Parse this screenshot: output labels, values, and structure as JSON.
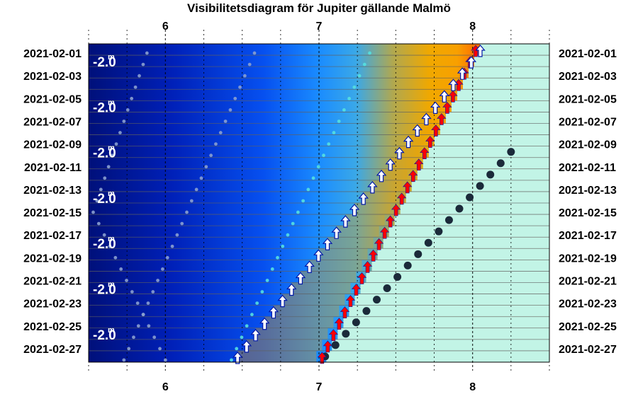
{
  "title": "Visibilitetsdiagram för Jupiter gällande Malmö",
  "chart_data": {
    "type": "scatter",
    "title": "Visibilitetsdiagram för Jupiter gällande Malmö",
    "x_ticks": [
      "6",
      "7",
      "8"
    ],
    "x_tick_values": [
      6,
      7,
      8
    ],
    "xlim": [
      5.5,
      8.5
    ],
    "dates_left": [
      "2021-02-01",
      "2021-02-03",
      "2021-02-05",
      "2021-02-07",
      "2021-02-09",
      "2021-02-11",
      "2021-02-13",
      "2021-02-15",
      "2021-02-17",
      "2021-02-19",
      "2021-02-21",
      "2021-02-23",
      "2021-02-25",
      "2021-02-27"
    ],
    "dates_right": [
      "2021-02-01",
      "2021-02-03",
      "2021-02-05",
      "2021-02-07",
      "2021-02-09",
      "2021-02-11",
      "2021-02-13",
      "2021-02-15",
      "2021-02-17",
      "2021-02-19",
      "2021-02-21",
      "2021-02-23",
      "2021-02-25",
      "2021-02-27"
    ],
    "magnitude_labels": [
      "-2.0",
      "-2.0",
      "-2.0",
      "-2.0",
      "-2.0",
      "-2.0",
      "-2.0"
    ],
    "magnitude_unit": "m",
    "rows": 28,
    "series": [
      {
        "marker": "white-arrow",
        "x_start": 8.05,
        "x_end": 6.47,
        "color": "#ffffff"
      },
      {
        "marker": "red-arrow",
        "x_start": 8.02,
        "x_end": 7.02,
        "color": "#ff0000"
      },
      {
        "marker": "dark-dot",
        "x_start": 8.25,
        "x_end": 7.04,
        "first_row": 9,
        "color": "#1b2a3a"
      },
      {
        "marker": "cyan-dot",
        "x_start": 7.33,
        "x_end": 6.43,
        "color": "#55e0e0"
      },
      {
        "marker": "grey-dot-a",
        "x_start": 6.58,
        "x_end": 5.73,
        "color": "#8aa0d0"
      },
      {
        "marker": "grey-dot-b",
        "x_start": 5.88,
        "x_end": 5.55,
        "x_turn": 5.53,
        "turn_row": 14,
        "color": "#8aa0d0"
      }
    ],
    "colors": {
      "night": "#001a8c",
      "twilight": "#1a7fff",
      "dawn": "#f4a000",
      "sunrise": "#ff5000",
      "day": "#c2f4e6"
    }
  }
}
